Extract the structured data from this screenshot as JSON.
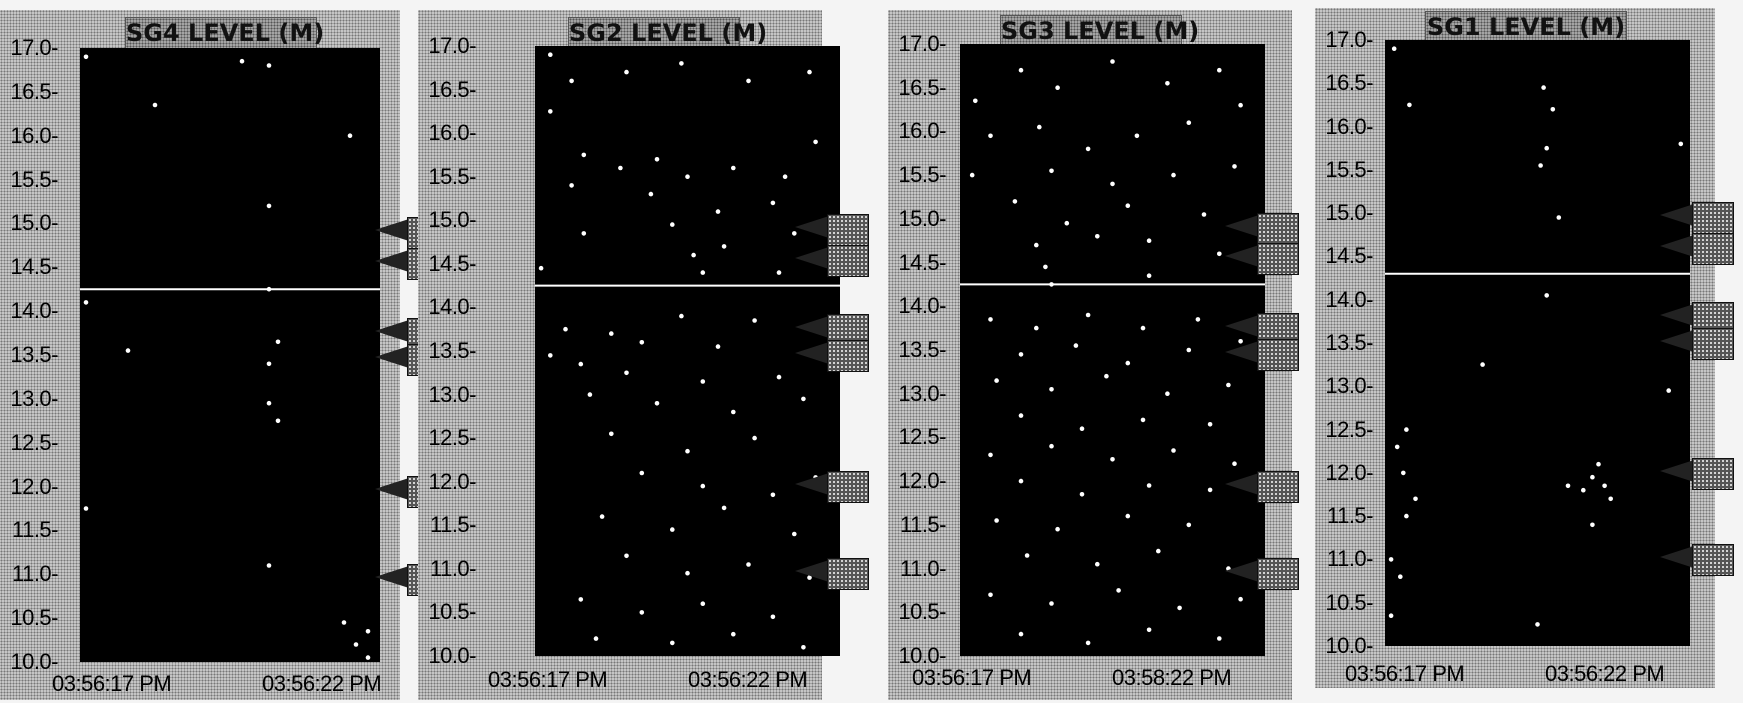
{
  "chart_data": [
    {
      "type": "scatter",
      "title": "SG4 LEVEL (M)",
      "ylim": [
        10.0,
        17.0
      ],
      "yticks": [
        "17.0",
        "16.5",
        "16.0",
        "15.5",
        "15.0",
        "14.5",
        "14.0",
        "13.5",
        "13.0",
        "12.5",
        "12.0",
        "11.5",
        "11.0",
        "10.5",
        "10.0"
      ],
      "xtick_labels": [
        "03:56:17 PM",
        "03:56:22 PM"
      ],
      "level_line": 14.25,
      "setpoints": [
        14.9,
        14.55,
        13.75,
        13.45,
        11.95,
        10.95
      ],
      "points": [
        [
          0.02,
          16.9
        ],
        [
          0.54,
          16.85
        ],
        [
          0.63,
          16.8
        ],
        [
          0.25,
          16.35
        ],
        [
          0.9,
          16.0
        ],
        [
          0.63,
          15.2
        ],
        [
          0.02,
          14.1
        ],
        [
          0.63,
          14.25
        ],
        [
          0.16,
          13.55
        ],
        [
          0.66,
          13.65
        ],
        [
          0.63,
          13.4
        ],
        [
          0.63,
          12.95
        ],
        [
          0.66,
          12.75
        ],
        [
          0.02,
          11.75
        ],
        [
          0.63,
          11.1
        ],
        [
          0.88,
          10.45
        ],
        [
          0.96,
          10.35
        ],
        [
          0.92,
          10.2
        ],
        [
          0.96,
          10.05
        ]
      ]
    },
    {
      "type": "scatter",
      "title": "SG2 LEVEL (M)",
      "ylim": [
        10.0,
        17.0
      ],
      "yticks": [
        "17.0",
        "16.5",
        "16.0",
        "15.5",
        "15.0",
        "14.5",
        "14.0",
        "13.5",
        "13.0",
        "12.5",
        "12.0",
        "11.5",
        "11.0",
        "10.5",
        "10.0"
      ],
      "xtick_labels": [
        "03:56:17 PM",
        "03:56:22 PM"
      ],
      "level_line": 14.25,
      "setpoints": [
        14.9,
        14.55,
        13.75,
        13.45,
        11.95,
        10.95
      ],
      "points": [
        [
          0.05,
          16.9
        ],
        [
          0.12,
          16.6
        ],
        [
          0.3,
          16.7
        ],
        [
          0.48,
          16.8
        ],
        [
          0.7,
          16.6
        ],
        [
          0.9,
          16.7
        ],
        [
          0.05,
          16.25
        ],
        [
          0.16,
          15.75
        ],
        [
          0.28,
          15.6
        ],
        [
          0.4,
          15.7
        ],
        [
          0.5,
          15.5
        ],
        [
          0.65,
          15.6
        ],
        [
          0.82,
          15.5
        ],
        [
          0.92,
          15.9
        ],
        [
          0.12,
          15.4
        ],
        [
          0.38,
          15.3
        ],
        [
          0.6,
          15.1
        ],
        [
          0.78,
          15.2
        ],
        [
          0.16,
          14.85
        ],
        [
          0.45,
          14.95
        ],
        [
          0.52,
          14.6
        ],
        [
          0.62,
          14.7
        ],
        [
          0.85,
          14.85
        ],
        [
          0.02,
          14.45
        ],
        [
          0.55,
          14.4
        ],
        [
          0.8,
          14.4
        ],
        [
          0.1,
          13.75
        ],
        [
          0.25,
          13.7
        ],
        [
          0.35,
          13.6
        ],
        [
          0.48,
          13.9
        ],
        [
          0.6,
          13.55
        ],
        [
          0.72,
          13.85
        ],
        [
          0.92,
          13.75
        ],
        [
          0.05,
          13.45
        ],
        [
          0.15,
          13.35
        ],
        [
          0.3,
          13.25
        ],
        [
          0.55,
          13.15
        ],
        [
          0.8,
          13.2
        ],
        [
          0.18,
          13.0
        ],
        [
          0.4,
          12.9
        ],
        [
          0.65,
          12.8
        ],
        [
          0.88,
          12.95
        ],
        [
          0.25,
          12.55
        ],
        [
          0.5,
          12.35
        ],
        [
          0.72,
          12.5
        ],
        [
          0.35,
          12.1
        ],
        [
          0.55,
          11.95
        ],
        [
          0.78,
          11.85
        ],
        [
          0.92,
          12.05
        ],
        [
          0.22,
          11.6
        ],
        [
          0.45,
          11.45
        ],
        [
          0.62,
          11.7
        ],
        [
          0.85,
          11.4
        ],
        [
          0.3,
          11.15
        ],
        [
          0.5,
          10.95
        ],
        [
          0.7,
          11.05
        ],
        [
          0.9,
          10.9
        ],
        [
          0.15,
          10.65
        ],
        [
          0.35,
          10.5
        ],
        [
          0.55,
          10.6
        ],
        [
          0.78,
          10.45
        ],
        [
          0.2,
          10.2
        ],
        [
          0.45,
          10.15
        ],
        [
          0.65,
          10.25
        ],
        [
          0.88,
          10.1
        ]
      ]
    },
    {
      "type": "scatter",
      "title": "SG3 LEVEL (M)",
      "ylim": [
        10.0,
        17.0
      ],
      "yticks": [
        "17.0",
        "16.5",
        "16.0",
        "15.5",
        "15.0",
        "14.5",
        "14.0",
        "13.5",
        "13.0",
        "12.5",
        "12.0",
        "11.5",
        "11.0",
        "10.5",
        "10.0"
      ],
      "xtick_labels": [
        "03:56:17 PM",
        "03:58:22 PM"
      ],
      "level_line": 14.25,
      "setpoints": [
        14.9,
        14.55,
        13.75,
        13.45,
        11.95,
        10.95
      ],
      "points": [
        [
          0.05,
          16.35
        ],
        [
          0.2,
          16.7
        ],
        [
          0.32,
          16.5
        ],
        [
          0.5,
          16.8
        ],
        [
          0.68,
          16.55
        ],
        [
          0.85,
          16.7
        ],
        [
          0.92,
          16.3
        ],
        [
          0.1,
          15.95
        ],
        [
          0.26,
          16.05
        ],
        [
          0.42,
          15.8
        ],
        [
          0.58,
          15.95
        ],
        [
          0.75,
          16.1
        ],
        [
          0.04,
          15.5
        ],
        [
          0.3,
          15.55
        ],
        [
          0.5,
          15.4
        ],
        [
          0.7,
          15.5
        ],
        [
          0.9,
          15.6
        ],
        [
          0.18,
          15.2
        ],
        [
          0.35,
          14.95
        ],
        [
          0.55,
          15.15
        ],
        [
          0.8,
          15.05
        ],
        [
          0.25,
          14.7
        ],
        [
          0.45,
          14.8
        ],
        [
          0.62,
          14.75
        ],
        [
          0.85,
          14.6
        ],
        [
          0.28,
          14.45
        ],
        [
          0.62,
          14.35
        ],
        [
          0.3,
          14.25
        ],
        [
          0.1,
          13.85
        ],
        [
          0.25,
          13.75
        ],
        [
          0.42,
          13.9
        ],
        [
          0.6,
          13.75
        ],
        [
          0.78,
          13.85
        ],
        [
          0.2,
          13.45
        ],
        [
          0.38,
          13.55
        ],
        [
          0.55,
          13.35
        ],
        [
          0.75,
          13.5
        ],
        [
          0.92,
          13.6
        ],
        [
          0.12,
          13.15
        ],
        [
          0.3,
          13.05
        ],
        [
          0.48,
          13.2
        ],
        [
          0.68,
          13.0
        ],
        [
          0.88,
          13.1
        ],
        [
          0.2,
          12.75
        ],
        [
          0.4,
          12.6
        ],
        [
          0.6,
          12.7
        ],
        [
          0.82,
          12.65
        ],
        [
          0.1,
          12.3
        ],
        [
          0.3,
          12.4
        ],
        [
          0.5,
          12.25
        ],
        [
          0.7,
          12.35
        ],
        [
          0.9,
          12.2
        ],
        [
          0.2,
          12.0
        ],
        [
          0.4,
          11.85
        ],
        [
          0.62,
          11.95
        ],
        [
          0.82,
          11.9
        ],
        [
          0.12,
          11.55
        ],
        [
          0.32,
          11.45
        ],
        [
          0.55,
          11.6
        ],
        [
          0.75,
          11.5
        ],
        [
          0.22,
          11.15
        ],
        [
          0.45,
          11.05
        ],
        [
          0.65,
          11.2
        ],
        [
          0.88,
          11.0
        ],
        [
          0.1,
          10.7
        ],
        [
          0.3,
          10.6
        ],
        [
          0.52,
          10.75
        ],
        [
          0.72,
          10.55
        ],
        [
          0.92,
          10.65
        ],
        [
          0.2,
          10.25
        ],
        [
          0.42,
          10.15
        ],
        [
          0.62,
          10.3
        ],
        [
          0.85,
          10.2
        ]
      ]
    },
    {
      "type": "scatter",
      "title": "SG1 LEVEL (M)",
      "ylim": [
        10.0,
        17.0
      ],
      "yticks": [
        "17.0",
        "16.5",
        "16.0",
        "15.5",
        "15.0",
        "14.5",
        "14.0",
        "13.5",
        "13.0",
        "12.5",
        "12.0",
        "11.5",
        "11.0",
        "10.5",
        "10.0"
      ],
      "xtick_labels": [
        "03:56:17 PM",
        "03:56:22 PM"
      ],
      "level_line": 14.3,
      "setpoints": [
        14.95,
        14.6,
        13.8,
        13.5,
        12.0,
        11.0
      ],
      "points": [
        [
          0.03,
          16.9
        ],
        [
          0.08,
          16.25
        ],
        [
          0.52,
          16.45
        ],
        [
          0.55,
          16.2
        ],
        [
          0.53,
          15.75
        ],
        [
          0.51,
          15.55
        ],
        [
          0.97,
          15.8
        ],
        [
          0.57,
          14.95
        ],
        [
          0.53,
          14.05
        ],
        [
          0.32,
          13.25
        ],
        [
          0.93,
          12.95
        ],
        [
          0.07,
          12.5
        ],
        [
          0.04,
          12.3
        ],
        [
          0.06,
          12.0
        ],
        [
          0.1,
          11.7
        ],
        [
          0.07,
          11.5
        ],
        [
          0.02,
          11.0
        ],
        [
          0.05,
          10.8
        ],
        [
          0.7,
          12.1
        ],
        [
          0.68,
          11.95
        ],
        [
          0.72,
          11.85
        ],
        [
          0.65,
          11.8
        ],
        [
          0.74,
          11.7
        ],
        [
          0.6,
          11.85
        ],
        [
          0.68,
          11.4
        ],
        [
          0.5,
          10.25
        ],
        [
          0.02,
          10.35
        ]
      ]
    }
  ]
}
